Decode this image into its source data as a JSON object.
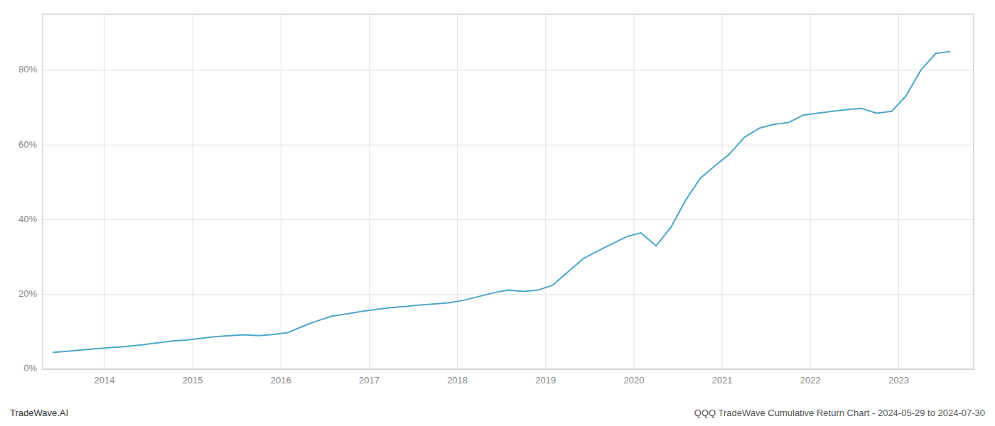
{
  "chart_data": {
    "type": "line",
    "title": "QQQ TradeWave Cumulative Return Chart - 2024-05-29 to 2024-07-30",
    "annotations": [
      "TradeWave.AI"
    ],
    "color": "#4da6c8",
    "grid": true,
    "x": [
      2013.42,
      2013.58,
      2013.75,
      2013.92,
      2014.08,
      2014.25,
      2014.42,
      2014.58,
      2014.75,
      2014.92,
      2015.08,
      2015.25,
      2015.42,
      2015.58,
      2015.75,
      2015.92,
      2016.08,
      2016.25,
      2016.42,
      2016.58,
      2016.75,
      2016.92,
      2017.08,
      2017.25,
      2017.42,
      2017.58,
      2017.75,
      2017.92,
      2018.08,
      2018.25,
      2018.42,
      2018.58,
      2018.75,
      2018.92,
      2019.08,
      2019.25,
      2019.42,
      2019.58,
      2019.75,
      2019.92,
      2020.08,
      2020.25,
      2020.42,
      2020.58,
      2020.75,
      2020.92,
      2021.08,
      2021.25,
      2021.42,
      2021.58,
      2021.75,
      2021.92,
      2022.08,
      2022.25,
      2022.42,
      2022.58,
      2022.75,
      2022.92,
      2023.08,
      2023.25,
      2023.42,
      2023.58
    ],
    "values": [
      4.5,
      4.8,
      5.2,
      5.5,
      5.8,
      6.1,
      6.5,
      7.0,
      7.5,
      7.8,
      8.2,
      8.7,
      9.0,
      9.2,
      9.0,
      9.3,
      9.8,
      11.5,
      13.0,
      14.2,
      14.8,
      15.5,
      16.0,
      16.5,
      16.8,
      17.2,
      17.5,
      17.8,
      18.5,
      19.5,
      20.5,
      21.2,
      20.8,
      21.2,
      22.5,
      26.0,
      29.5,
      31.5,
      33.5,
      35.5,
      36.5,
      33.0,
      38.0,
      45.0,
      51.0,
      54.5,
      57.5,
      62.0,
      64.5,
      65.5,
      66.0,
      68.0,
      68.5,
      69.0,
      69.5,
      69.8,
      68.5,
      69.0,
      73.0,
      80.0,
      84.5,
      85.0
    ],
    "xlim": [
      2013.3,
      2023.85
    ],
    "ylim": [
      0,
      95
    ],
    "xticks": [
      2014,
      2015,
      2016,
      2017,
      2018,
      2019,
      2020,
      2021,
      2022,
      2023
    ],
    "yticks": [
      {
        "value": 0,
        "label": "0%"
      },
      {
        "value": 20,
        "label": "20%"
      },
      {
        "value": 40,
        "label": "40%"
      },
      {
        "value": 60,
        "label": "60%"
      },
      {
        "value": 80,
        "label": "80%"
      }
    ]
  }
}
